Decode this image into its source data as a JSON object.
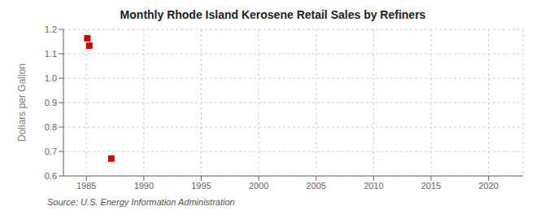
{
  "chart_data": {
    "type": "scatter",
    "title": "Monthly Rhode Island Kerosene Retail Sales by Refiners",
    "ylabel": "Dollars per Gallon",
    "annotations": [
      "Source: U.S. Energy Information Administration"
    ],
    "x": [
      1985.08,
      1985.25,
      1987.17
    ],
    "values": [
      1.163,
      1.133,
      0.671
    ],
    "color": "#cc0000",
    "marker": "square",
    "xlim": [
      1983,
      2023
    ],
    "ylim": [
      0.6,
      1.2
    ],
    "xticks": [
      1985,
      1990,
      1995,
      2000,
      2005,
      2010,
      2015,
      2020
    ],
    "yticks": [
      0.6,
      0.7,
      0.8,
      0.9,
      {
        "value": 1,
        "label": "1.0"
      },
      1.1,
      1.2
    ],
    "grid": true
  }
}
